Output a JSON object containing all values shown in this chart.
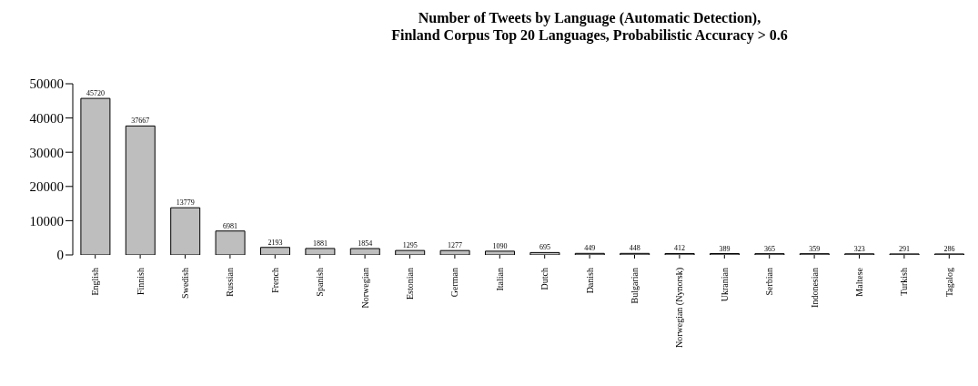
{
  "chart_data": {
    "type": "bar",
    "title": "Number of Tweets by Language (Automatic Detection),\nFinland Corpus Top 20 Languages, Probabilistic Accuracy > 0.6",
    "categories": [
      "English",
      "Finnish",
      "Swedish",
      "Russian",
      "French",
      "Spanish",
      "Norwegian",
      "Estonian",
      "German",
      "Italian",
      "Dutch",
      "Danish",
      "Bulgarian",
      "Norwegian (Nynorsk)",
      "Ukranian",
      "Serbian",
      "Indonesian",
      "Maltese",
      "Turkish",
      "Tagalog"
    ],
    "values": [
      45720,
      37667,
      13779,
      6981,
      2193,
      1881,
      1854,
      1295,
      1277,
      1090,
      695,
      449,
      448,
      412,
      389,
      365,
      359,
      323,
      291,
      286
    ],
    "color": "#bebebe",
    "ylim": [
      0,
      50000
    ],
    "yticks": [
      0,
      10000,
      20000,
      30000,
      40000,
      50000
    ],
    "grid": false,
    "data_labels": true
  }
}
